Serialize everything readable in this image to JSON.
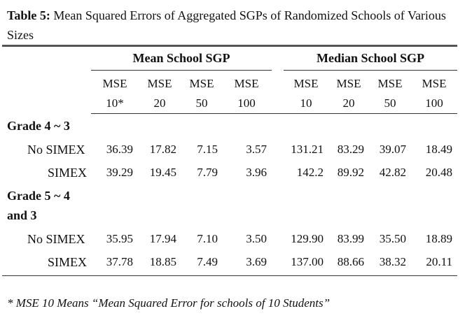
{
  "caption": {
    "label": "Table 5:",
    "text": "Mean Squared Errors of Aggregated SGPs of Randomized Schools of Various Sizes"
  },
  "groups": [
    "Mean School SGP",
    "Median School SGP"
  ],
  "headers": {
    "mean": [
      [
        "MSE",
        "10*"
      ],
      [
        "MSE",
        "20"
      ],
      [
        "MSE",
        "50"
      ],
      [
        "MSE",
        "100"
      ]
    ],
    "median": [
      [
        "MSE",
        "10"
      ],
      [
        "MSE",
        "20"
      ],
      [
        "MSE",
        "50"
      ],
      [
        "MSE",
        "100"
      ]
    ]
  },
  "sections": [
    {
      "label_lines": [
        "Grade 4 ~ 3"
      ],
      "rows": [
        {
          "label": "No SIMEX",
          "values": [
            "36.39",
            "17.82",
            "7.15",
            "3.57",
            "131.21",
            "83.29",
            "39.07",
            "18.49"
          ]
        },
        {
          "label": "SIMEX",
          "values": [
            "39.29",
            "19.45",
            "7.79",
            "3.96",
            "142.2",
            "89.92",
            "42.82",
            "20.48"
          ]
        }
      ]
    },
    {
      "label_lines": [
        "Grade 5 ~ 4",
        "and 3"
      ],
      "rows": [
        {
          "label": "No SIMEX",
          "values": [
            "35.95",
            "17.94",
            "7.10",
            "3.50",
            "129.90",
            "83.99",
            "35.50",
            "18.89"
          ]
        },
        {
          "label": "SIMEX",
          "values": [
            "37.78",
            "18.85",
            "7.49",
            "3.69",
            "137.00",
            "88.66",
            "38.32",
            "20.11"
          ]
        }
      ]
    }
  ],
  "footnote": "* MSE 10 Means “Mean Squared Error for schools of 10 Students”"
}
